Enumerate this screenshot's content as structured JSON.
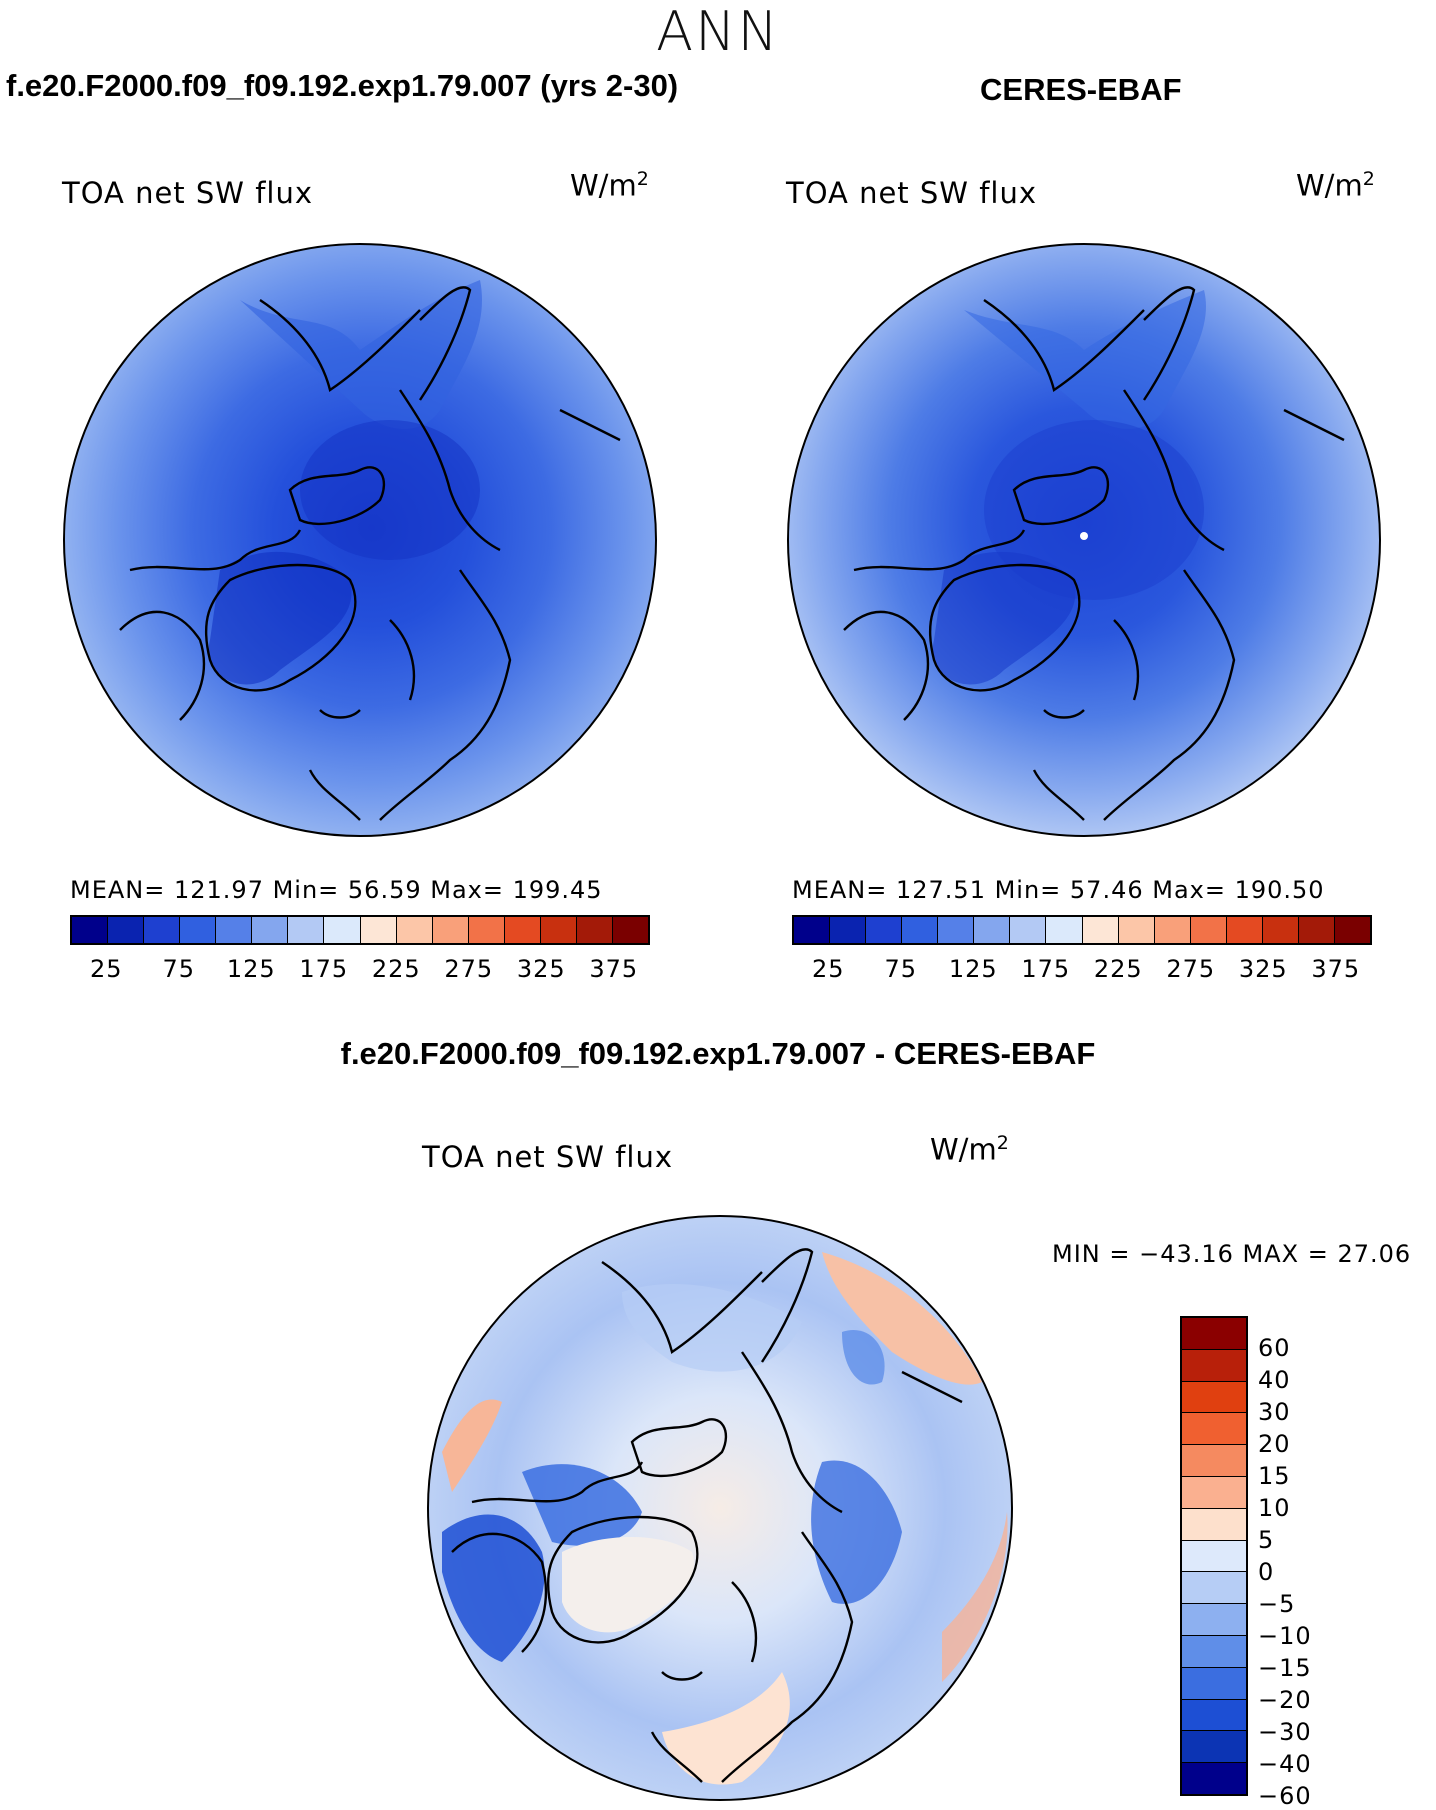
{
  "season": "ANN",
  "panels": {
    "model": {
      "title": "f.e20.F2000.f09_f09.192.exp1.79.007 (yrs 2-30)",
      "variable": "TOA net SW flux",
      "units": "W/m",
      "units_sup": "2",
      "stats": "MEAN= 121.97   Min=  56.59   Max= 199.45"
    },
    "obs": {
      "title": "CERES-EBAF",
      "variable": "TOA net SW flux",
      "units": "W/m",
      "units_sup": "2",
      "stats": "MEAN= 127.51   Min=  57.46   Max= 190.50"
    },
    "diff": {
      "title": "f.e20.F2000.f09_f09.192.exp1.79.007 - CERES-EBAF",
      "variable": "TOA net SW flux",
      "units": "W/m",
      "units_sup": "2",
      "stats": "MIN = −43.16 MAX =   27.06"
    }
  },
  "colorbar_abs": {
    "colors": [
      "#00008b",
      "#0a23b0",
      "#1e40d0",
      "#3060e0",
      "#5580e8",
      "#84a6ee",
      "#b3c9f4",
      "#dbe9fb",
      "#fde6d6",
      "#fcc6a8",
      "#f9a07a",
      "#f27248",
      "#e44a22",
      "#c8300f",
      "#a31a08",
      "#7a0000"
    ],
    "tick_labels": [
      "25",
      "75",
      "125",
      "175",
      "225",
      "275",
      "325",
      "375"
    ]
  },
  "colorbar_diff": {
    "colors": [
      "#8b0000",
      "#b8200a",
      "#e04010",
      "#f06030",
      "#f58a60",
      "#fab090",
      "#fde0cc",
      "#dde9fb",
      "#b6cdf5",
      "#8db0f0",
      "#5f8ee8",
      "#3b6ee0",
      "#1d4fd4",
      "#0c34b4",
      "#00008b"
    ],
    "tick_labels": [
      "60",
      "40",
      "30",
      "20",
      "15",
      "10",
      "5",
      "0",
      "−5",
      "−10",
      "−15",
      "−20",
      "−30",
      "−40",
      "−60"
    ]
  }
}
